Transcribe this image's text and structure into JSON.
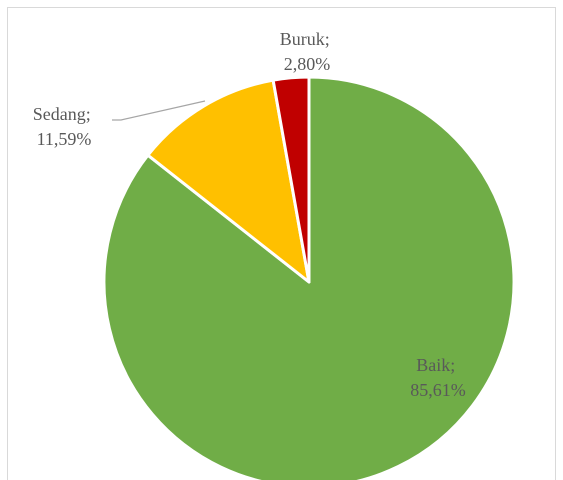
{
  "chart_data": {
    "type": "pie",
    "categories": [
      "Baik",
      "Sedang",
      "Buruk"
    ],
    "values": [
      85.61,
      11.59,
      2.8
    ],
    "data_labels": [
      {
        "name": "Baik;",
        "value": "85,61%"
      },
      {
        "name": "Sedang;",
        "value": "11,59%"
      },
      {
        "name": "Buruk;",
        "value": "2,80%"
      }
    ],
    "colors": [
      "#70AD47",
      "#FFC000",
      "#C00000"
    ],
    "slice_border_color": "#FFFFFF",
    "legend": "none",
    "title": ""
  }
}
